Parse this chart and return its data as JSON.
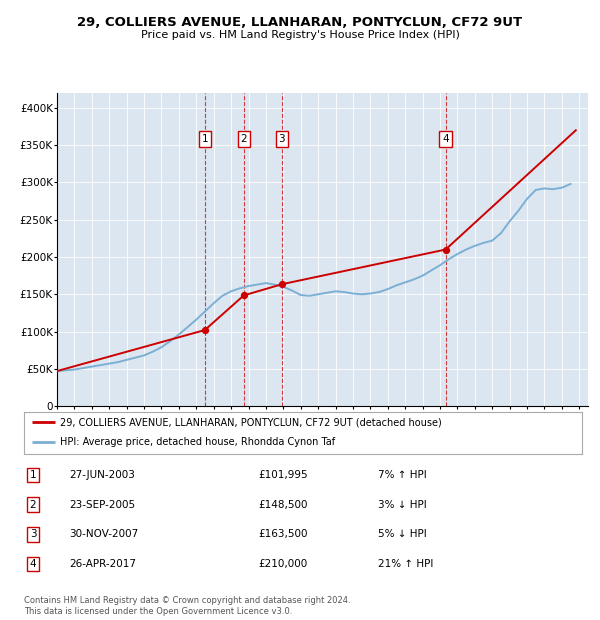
{
  "title": "29, COLLIERS AVENUE, LLANHARAN, PONTYCLUN, CF72 9UT",
  "subtitle": "Price paid vs. HM Land Registry's House Price Index (HPI)",
  "ylim": [
    0,
    420000
  ],
  "yticks": [
    0,
    50000,
    100000,
    150000,
    200000,
    250000,
    300000,
    350000,
    400000
  ],
  "ytick_labels": [
    "0",
    "£50K",
    "£100K",
    "£150K",
    "£200K",
    "£250K",
    "£300K",
    "£350K",
    "£400K"
  ],
  "background_color": "#dce6f1",
  "legend_house_label": "29, COLLIERS AVENUE, LLANHARAN, PONTYCLUN, CF72 9UT (detached house)",
  "legend_hpi_label": "HPI: Average price, detached house, Rhondda Cynon Taf",
  "house_color": "#cc0000",
  "hpi_color": "#7bafd4",
  "transactions": [
    {
      "num": 1,
      "date": "27-JUN-2003",
      "price": 101995,
      "pct": "7%",
      "dir": "↑",
      "year": 2003.49
    },
    {
      "num": 2,
      "date": "23-SEP-2005",
      "price": 148500,
      "pct": "3%",
      "dir": "↓",
      "year": 2005.73
    },
    {
      "num": 3,
      "date": "30-NOV-2007",
      "price": 163500,
      "pct": "5%",
      "dir": "↓",
      "year": 2007.92
    },
    {
      "num": 4,
      "date": "26-APR-2017",
      "price": 210000,
      "pct": "21%",
      "dir": "↑",
      "year": 2017.32
    }
  ],
  "footer": "Contains HM Land Registry data © Crown copyright and database right 2024.\nThis data is licensed under the Open Government Licence v3.0.",
  "hpi_years": [
    1995,
    1995.5,
    1996,
    1996.5,
    1997,
    1997.5,
    1998,
    1998.5,
    1999,
    1999.5,
    2000,
    2000.5,
    2001,
    2001.5,
    2002,
    2002.5,
    2003,
    2003.5,
    2004,
    2004.5,
    2005,
    2005.5,
    2006,
    2006.5,
    2007,
    2007.5,
    2008,
    2008.5,
    2009,
    2009.5,
    2010,
    2010.5,
    2011,
    2011.5,
    2012,
    2012.5,
    2013,
    2013.5,
    2014,
    2014.5,
    2015,
    2015.5,
    2016,
    2016.5,
    2017,
    2017.5,
    2018,
    2018.5,
    2019,
    2019.5,
    2020,
    2020.5,
    2021,
    2021.5,
    2022,
    2022.5,
    2023,
    2023.5,
    2024,
    2024.5
  ],
  "hpi_values": [
    47000,
    48000,
    49000,
    51000,
    53000,
    55000,
    57000,
    59000,
    62000,
    65000,
    68000,
    73000,
    79000,
    87000,
    96000,
    106000,
    116000,
    127000,
    138000,
    148000,
    154000,
    158000,
    161000,
    163000,
    165000,
    163000,
    160000,
    155000,
    149000,
    148000,
    150000,
    152000,
    154000,
    153000,
    151000,
    150000,
    151000,
    153000,
    157000,
    162000,
    166000,
    170000,
    175000,
    182000,
    189000,
    197000,
    204000,
    210000,
    215000,
    219000,
    222000,
    232000,
    248000,
    262000,
    278000,
    290000,
    292000,
    291000,
    293000,
    298000
  ],
  "house_years": [
    1995.0,
    2003.49,
    2005.73,
    2007.92,
    2017.32,
    2024.8
  ],
  "house_values": [
    47000,
    101995,
    148500,
    163500,
    210000,
    370000
  ]
}
